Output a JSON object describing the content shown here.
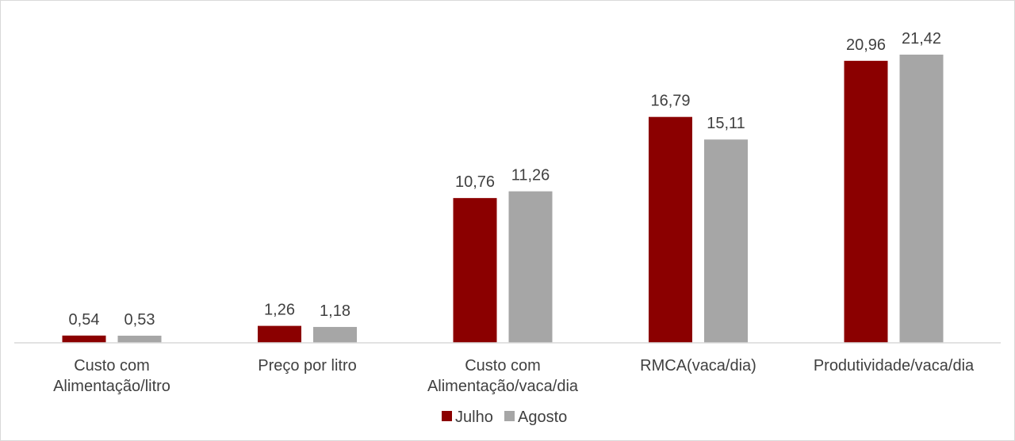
{
  "chart_data": {
    "type": "bar",
    "categories": [
      [
        "Custo com",
        "Alimentação/litro"
      ],
      [
        "Preço por litro"
      ],
      [
        "Custo com",
        "Alimentação/vaca/dia"
      ],
      [
        "RMCA(vaca/dia)"
      ],
      [
        "Produtividade/vaca/dia"
      ]
    ],
    "series": [
      {
        "name": "Julho",
        "color": "#8b0000",
        "values": [
          0.54,
          1.26,
          10.76,
          16.79,
          20.96
        ],
        "labels": [
          "0,54",
          "1,26",
          "10,76",
          "16,79",
          "20,96"
        ]
      },
      {
        "name": "Agosto",
        "color": "#a6a6a6",
        "values": [
          0.53,
          1.18,
          11.26,
          15.11,
          21.42
        ],
        "labels": [
          "0,53",
          "1,18",
          "11,26",
          "15,11",
          "21,42"
        ]
      }
    ],
    "ylim": [
      0,
      21.42
    ],
    "grid": false,
    "legend_position": "bottom"
  }
}
